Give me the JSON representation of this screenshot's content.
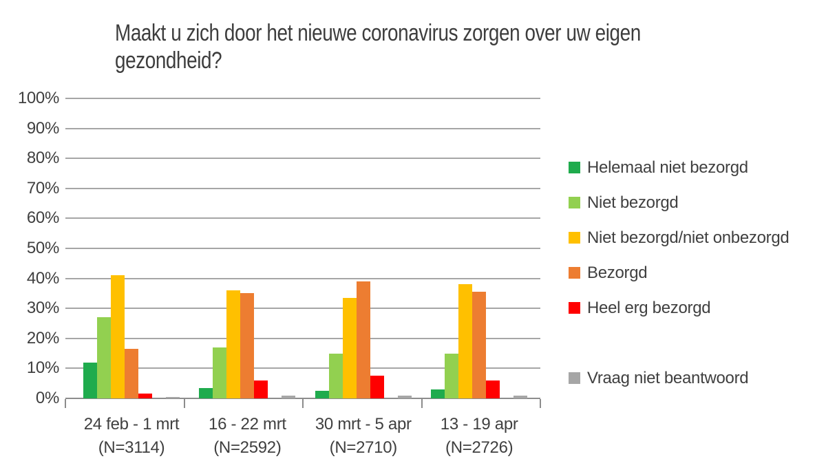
{
  "chart_data": {
    "type": "bar",
    "title": "Maakt u zich door het nieuwe coronavirus zorgen over uw eigen gezondheid?",
    "title_lines": [
      "Maakt u zich door het nieuwe coronavirus zorgen over uw eigen",
      "gezondheid?"
    ],
    "xlabel": "",
    "ylabel": "",
    "ylim": [
      0,
      100
    ],
    "ytick_step": 10,
    "ytick_labels": [
      "0%",
      "10%",
      "20%",
      "30%",
      "40%",
      "50%",
      "60%",
      "70%",
      "80%",
      "90%",
      "100%"
    ],
    "grid": true,
    "legend_position": "right",
    "categories": [
      {
        "period": "24 feb - 1 mrt",
        "n": "(N=3114)"
      },
      {
        "period": "16 - 22 mrt",
        "n": "(N=2592)"
      },
      {
        "period": "30 mrt - 5 apr",
        "n": "(N=2710)"
      },
      {
        "period": "13 - 19 apr",
        "n": "(N=2726)"
      }
    ],
    "series": [
      {
        "name": "Helemaal niet bezorgd",
        "color": "#1FAB4D",
        "slot": 0,
        "values": [
          12,
          3.5,
          2.5,
          3
        ]
      },
      {
        "name": "Niet bezorgd",
        "color": "#92D050",
        "slot": 1,
        "values": [
          27,
          17,
          15,
          15
        ]
      },
      {
        "name": "Niet bezorgd/niet onbezorgd",
        "color": "#FFC000",
        "slot": 2,
        "values": [
          41,
          36,
          33.5,
          38
        ]
      },
      {
        "name": "Bezorgd",
        "color": "#ED7D31",
        "slot": 3,
        "values": [
          16.5,
          35,
          39,
          35.5
        ]
      },
      {
        "name": "Heel erg bezorgd",
        "color": "#FF0000",
        "slot": 4,
        "values": [
          1.5,
          6,
          7.5,
          6
        ]
      },
      {
        "name": "Vraag niet beantwoord",
        "color": "#A6A6A6",
        "slot": 6,
        "values": [
          0.5,
          1,
          1,
          1
        ]
      }
    ],
    "colors": {
      "axis_text": "#404040",
      "title_text": "#3d3d3d",
      "gridline": "#A6A6A6",
      "axis_line": "#8C8C8C",
      "background": "#FFFFFF"
    }
  }
}
